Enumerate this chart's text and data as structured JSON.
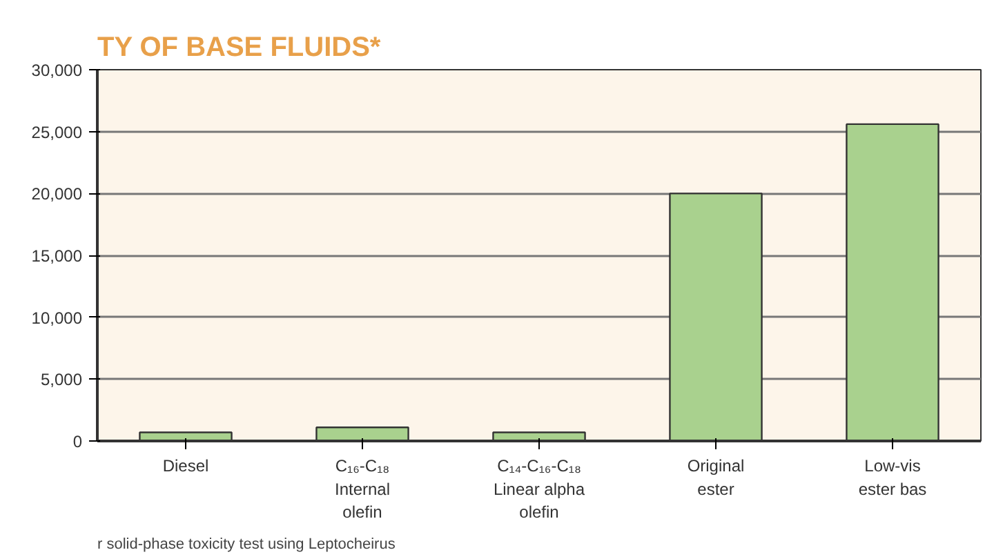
{
  "chart_data": {
    "type": "bar",
    "title": "TY OF BASE FLUIDS*",
    "categories": [
      "Diesel",
      "C₁₆-C₁₈\nInternal\nolefin",
      "C₁₄-C₁₆-C₁₈\nLinear alpha\nolefin",
      "Original\nester",
      "Low-vis\nester bas"
    ],
    "values": [
      700,
      1100,
      700,
      20000,
      25600
    ],
    "color": "#a9d18e",
    "ylim": [
      0,
      30000
    ],
    "yticks": [
      {
        "value": 0,
        "label": "0"
      },
      {
        "value": 5000,
        "label": "5,000"
      },
      {
        "value": 10000,
        "label": "10,000"
      },
      {
        "value": 15000,
        "label": "15,000"
      },
      {
        "value": 20000,
        "label": "20,000"
      },
      {
        "value": 25000,
        "label": "25,000"
      },
      {
        "value": 30000,
        "label": "30,000"
      }
    ],
    "grid": "y",
    "annotations": [
      "r solid-phase toxicity test using Leptocheirus"
    ]
  }
}
